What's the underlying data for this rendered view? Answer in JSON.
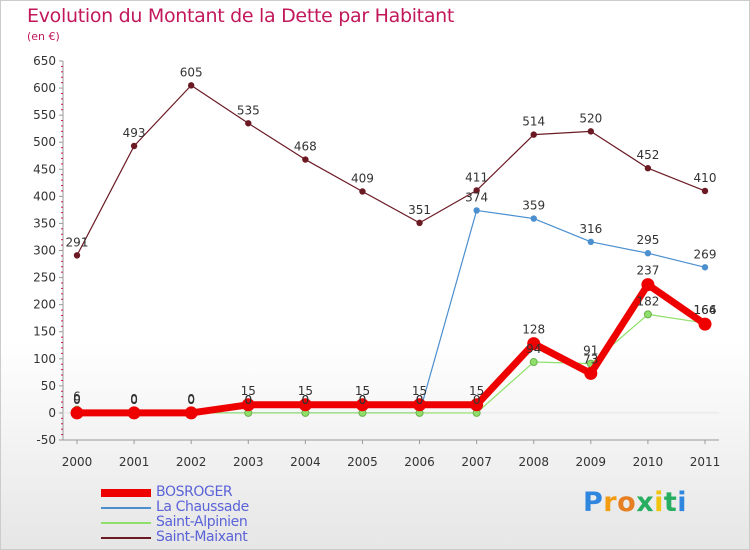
{
  "chart_data": {
    "type": "line",
    "title": "Evolution du Montant de la Dette par Habitant",
    "subtitle": "(en €)",
    "x": [
      "2000",
      "2001",
      "2002",
      "2003",
      "2004",
      "2005",
      "2006",
      "2007",
      "2008",
      "2009",
      "2010",
      "2011"
    ],
    "ylim": [
      -50,
      650
    ],
    "yticks": [
      -50,
      0,
      50,
      100,
      150,
      200,
      250,
      300,
      350,
      400,
      450,
      500,
      550,
      600,
      650
    ],
    "grid": false,
    "legend_position": "bottom-left",
    "series": [
      {
        "name": "BOSROGER",
        "color": "#ee0000",
        "values": [
          0,
          0,
          0,
          15,
          15,
          15,
          15,
          15,
          128,
          73,
          237,
          164
        ]
      },
      {
        "name": "La Chaussade",
        "color": "#4b8fcf",
        "values": [
          0,
          0,
          0,
          0,
          0,
          0,
          0,
          374,
          359,
          316,
          295,
          269
        ]
      },
      {
        "name": "Saint-Alpinien",
        "color": "#8fe06a",
        "values": [
          6,
          0,
          0,
          0,
          0,
          0,
          0,
          0,
          94,
          91,
          182,
          166
        ]
      },
      {
        "name": "Saint-Maixant",
        "color": "#6b1a24",
        "values": [
          291,
          493,
          605,
          535,
          468,
          409,
          351,
          411,
          514,
          520,
          452,
          410
        ]
      }
    ]
  },
  "logo": {
    "letters": [
      "P",
      "r",
      "o",
      "x",
      "i",
      "t",
      "i"
    ],
    "colors": [
      "#2e86de",
      "#f39c12",
      "#e67e22",
      "#27ae60",
      "#f1c40f",
      "#27ae60",
      "#2e86de"
    ]
  }
}
